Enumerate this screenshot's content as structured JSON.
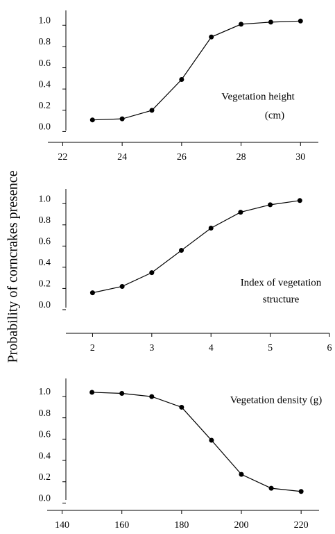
{
  "y_axis_label": "Probability of corncrakes presence",
  "chart_data": [
    {
      "type": "line",
      "annotation": [
        "Vegetation height",
        "(cm)"
      ],
      "x": [
        23,
        24,
        25,
        26,
        27,
        28,
        29,
        30
      ],
      "values": [
        0.07,
        0.08,
        0.16,
        0.45,
        0.85,
        0.97,
        0.99,
        1.0
      ],
      "color": "#000000",
      "xlim": [
        21.5,
        30.6
      ],
      "xticks": [
        22,
        24,
        26,
        28,
        30
      ],
      "ylim": [
        -0.03,
        1.1
      ],
      "yticks": [
        {
          "value": 0,
          "label": "0.0"
        },
        0.2,
        0.4,
        0.6,
        0.8,
        {
          "value": 1,
          "label": "1.0"
        }
      ]
    },
    {
      "type": "line",
      "annotation": [
        "Index of vegetation",
        "structure"
      ],
      "x": [
        2,
        2.5,
        3,
        3.5,
        4,
        4.5,
        5,
        5.5
      ],
      "values": [
        0.12,
        0.18,
        0.31,
        0.52,
        0.73,
        0.88,
        0.95,
        0.99
      ],
      "color": "#000000",
      "xlim": [
        1.55,
        6
      ],
      "xticks": [
        2,
        3,
        4,
        5,
        6
      ],
      "ylim": [
        -0.02,
        1.1
      ],
      "yticks": [
        {
          "value": 0,
          "label": "0.0"
        },
        0.2,
        0.4,
        0.6,
        0.8,
        {
          "value": 1,
          "label": "1.0"
        }
      ]
    },
    {
      "type": "line",
      "annotation": [
        "Vegetation density (g)"
      ],
      "x": [
        150,
        160,
        170,
        180,
        190,
        200,
        210,
        220
      ],
      "values": [
        1.0,
        0.99,
        0.96,
        0.86,
        0.55,
        0.23,
        0.1,
        0.07
      ],
      "color": "#000000",
      "xlim": [
        135,
        226
      ],
      "xticks": [
        140,
        160,
        180,
        200,
        220
      ],
      "ylim": [
        -0.01,
        1.13
      ],
      "yticks": [
        {
          "value": 0,
          "label": "0.0"
        },
        0.2,
        0.4,
        0.6,
        0.8,
        {
          "value": 1,
          "label": "1.0"
        }
      ]
    }
  ]
}
